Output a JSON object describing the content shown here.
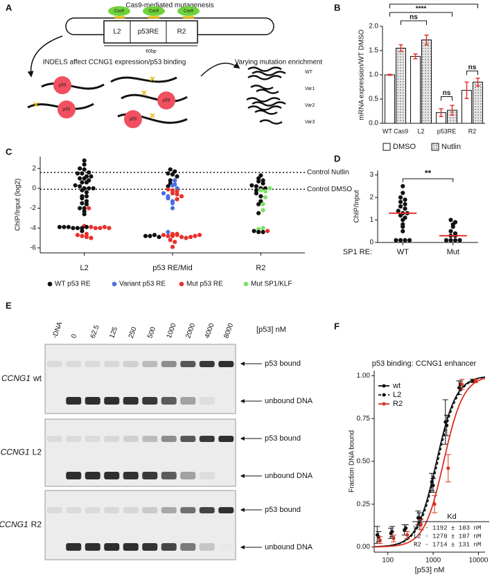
{
  "panel_labels": [
    "A",
    "B",
    "C",
    "D",
    "E",
    "F"
  ],
  "diagram": {
    "title": "Cas9-mediated mutagenesis",
    "cas9": [
      "Cas9",
      "Cas9",
      "Cas9"
    ],
    "segments": [
      "L2",
      "p53RE",
      "R2"
    ],
    "length": "60bp",
    "caption": "INDELS affect CCNG1 expression/p53 binding",
    "protein": [
      "p53",
      "p53",
      "p53",
      "p53"
    ],
    "enrichment_title": "Varying mutation enrichment",
    "variants": [
      "WT",
      "Var1",
      "Var2",
      "Var3"
    ]
  },
  "gel": {
    "unit": "[p53] nM",
    "lanes": [
      "-DNA",
      "0",
      "62.5",
      "125",
      "250",
      "500",
      "1000",
      "2000",
      "4000",
      "8000"
    ],
    "rows": [
      {
        "gene": "CCNG1",
        "variant": "wt",
        "bound": "p53 bound",
        "unbound": "unbound DNA"
      },
      {
        "gene": "CCNG1",
        "variant": "L2",
        "bound": "p53 bound",
        "unbound": "unbound DNA"
      },
      {
        "gene": "CCNG1",
        "variant": "R2",
        "bound": "p53 bound",
        "unbound": "unbound DNA"
      }
    ]
  },
  "chart_data": [
    {
      "type": "bar",
      "ylabel": "mRNA expression/WT DMSO",
      "categories": [
        "WT Cas9",
        "L2",
        "p53RE",
        "R2"
      ],
      "series": [
        {
          "name": "DMSO",
          "color": "#ffffff",
          "values": [
            1.0,
            1.38,
            0.22,
            0.68
          ],
          "errors": [
            0.01,
            0.05,
            0.08,
            0.17
          ]
        },
        {
          "name": "Nutlin",
          "color": "#d9d9d9",
          "pattern": "dotted",
          "values": [
            1.55,
            1.72,
            0.27,
            0.85
          ],
          "errors": [
            0.07,
            0.1,
            0.1,
            0.08
          ]
        }
      ],
      "error_color": "#e8302a",
      "ylim": [
        0,
        2
      ],
      "yticks": [
        {
          "value": 0,
          "label": "0.0"
        },
        {
          "value": 0.5,
          "label": "0.5"
        },
        {
          "value": 1,
          "label": "1.0"
        },
        {
          "value": 1.5,
          "label": "1.5"
        },
        {
          "value": 2,
          "label": "2.0"
        }
      ],
      "annotations": [
        "****",
        "****",
        "ns",
        "ns",
        "ns"
      ]
    },
    {
      "type": "strip",
      "ylabel": "ChIP/Input (log2)",
      "categories": [
        "L2",
        "p53 RE/Mid",
        "R2"
      ],
      "series": [
        {
          "name": "WT p53 RE",
          "color": "#111111",
          "values": [
            [
              2.8,
              2.4,
              2.0,
              1.9,
              1.6,
              1.5,
              1.5,
              1.2,
              1.2,
              1.0,
              1.0,
              0.8,
              0.6,
              0.6,
              0.3,
              0.2,
              0,
              0,
              0,
              -0.2,
              -0.4,
              -0.8,
              -0.8,
              -1.0,
              -1.3,
              -1.5,
              -1.6,
              -2.0,
              -2.0,
              -2.3,
              -2.6,
              -3.9,
              -3.9,
              -3.9,
              -4.0,
              -4.0,
              -4.0,
              -3.9,
              -4.3
            ],
            [
              1.9,
              1.7,
              1.5,
              1.4,
              1.2,
              0.8,
              0.5,
              0.2,
              -4.8,
              -4.8,
              -4.7,
              -4.9
            ],
            [
              1.3,
              1.0,
              0.8,
              0.7,
              0.5,
              0.3,
              0.2,
              0,
              0,
              -0.2,
              -0.5,
              -0.8,
              -1.3,
              -1.6,
              -2.5,
              -4.3,
              -4.4,
              -4.4
            ]
          ]
        },
        {
          "name": "Variant p53 RE",
          "color": "#4a6fe3",
          "values": [
            [],
            [
              0.8,
              0.4,
              0.3,
              0,
              -0.5,
              -0.8,
              -1.0,
              -1.3,
              -1.5,
              -2.0,
              -4.4
            ],
            []
          ]
        },
        {
          "name": "Mut p53 RE",
          "color": "#e8302a",
          "values": [
            [
              -2.0,
              -3.9,
              -4.0,
              -4.0,
              -3.9,
              -3.8,
              -4.0,
              -4.7,
              -4.8,
              -4.9,
              -5.0,
              -4.6
            ],
            [
              -0.1,
              -0.2,
              -0.3,
              -0.5,
              -0.6,
              -0.8,
              -1.1,
              -4.6,
              -4.7,
              -4.8,
              -4.8,
              -4.7,
              -4.9,
              -5.0,
              -4.9,
              -4.8,
              -4.7,
              -4.6,
              -5.2,
              -5.4,
              -5.9
            ],
            [
              -4.3
            ]
          ]
        },
        {
          "name": "Mut SP1/KLF",
          "color": "#7ee06a",
          "values": [
            [],
            [],
            [
              0,
              -0.2,
              -0.3,
              -0.9,
              -1.6,
              -2.2,
              -4.1,
              -4.0
            ]
          ]
        }
      ],
      "ylim": [
        -6.5,
        3.2
      ],
      "yticks": [
        -6,
        -4,
        -2,
        0,
        2
      ],
      "reference_lines": [
        {
          "value": 1.6,
          "label": "Control Nutlin"
        },
        {
          "value": -0.1,
          "label": "Control DMSO"
        }
      ]
    },
    {
      "type": "strip",
      "ylabel": "ChIP/Input",
      "xlabel": "SP1 RE:",
      "categories": [
        "WT",
        "Mut"
      ],
      "color": "#111111",
      "values": [
        [
          2.5,
          2.2,
          2.0,
          1.9,
          1.8,
          1.7,
          1.6,
          1.5,
          1.4,
          1.3,
          1.3,
          1.2,
          1.1,
          1.0,
          0.8,
          0.7,
          0.5,
          0.1,
          0.1,
          0.1,
          0.1
        ],
        [
          1.0,
          0.9,
          0.8,
          0.7,
          0.5,
          0.4,
          0.3,
          0.3,
          0.1,
          0.1,
          0.1,
          0.1
        ]
      ],
      "medians": [
        1.3,
        0.3
      ],
      "median_color": "#e8302a",
      "ylim": [
        0,
        3.2
      ],
      "yticks": [
        0,
        1,
        2,
        3
      ],
      "annotations": [
        "**"
      ]
    },
    {
      "type": "line",
      "title": "p53 binding: CCNG1 enhancer",
      "xlabel": "[p53] nM",
      "ylabel": "Fraction DNA bound",
      "log_x": true,
      "x": [
        62.5,
        125,
        250,
        500,
        1000,
        2000,
        4000,
        8000
      ],
      "series": [
        {
          "name": "wt",
          "color": "#111111",
          "dash": false,
          "kd": 1192,
          "values": [
            0.07,
            0.08,
            0.1,
            0.17,
            0.38,
            0.73,
            0.93,
            0.97
          ],
          "errors": [
            0.05,
            0.03,
            0.03,
            0.04,
            0.05,
            0.13,
            0.04,
            0.01
          ]
        },
        {
          "name": "L2",
          "color": "#111111",
          "dash": true,
          "kd": 1270,
          "values": [
            0.06,
            0.09,
            0.11,
            0.17,
            0.36,
            0.71,
            0.95,
            0.97
          ],
          "errors": [
            0.03,
            0.03,
            0.02,
            0.03,
            0.04,
            0.06,
            0.02,
            0.01
          ]
        },
        {
          "name": "R2",
          "color": "#d7301f",
          "dash": false,
          "kd": 1714,
          "values": [
            0.04,
            0.05,
            0.07,
            0.13,
            0.25,
            0.46,
            0.95,
            0.97
          ],
          "errors": [
            0.02,
            0.02,
            0.02,
            0.03,
            0.05,
            0.08,
            0.03,
            0.01
          ]
        }
      ],
      "xlim": [
        50,
        14000
      ],
      "xticks": [
        100,
        1000,
        10000
      ],
      "ylim": [
        -0.03,
        1.03
      ],
      "yticks": [
        {
          "value": 0,
          "label": "0.00"
        },
        {
          "value": 0.25,
          "label": "0.25"
        },
        {
          "value": 0.5,
          "label": "0.50"
        },
        {
          "value": 0.75,
          "label": "0.75"
        },
        {
          "value": 1,
          "label": "1.00"
        }
      ],
      "kd_table": {
        "header": "Kd",
        "rows": [
          "WT - 1192 ± 103 nM",
          "L2 - 1270 ± 107 nM",
          "R2 - 1714 ± 131 nM"
        ]
      }
    }
  ]
}
